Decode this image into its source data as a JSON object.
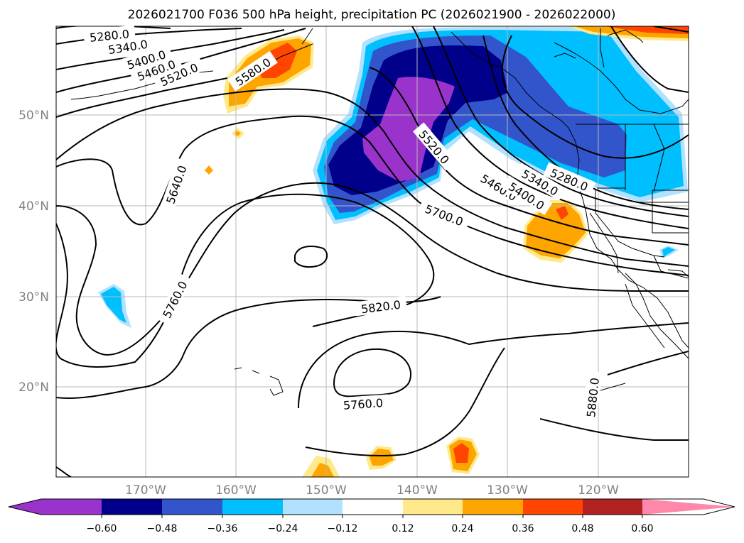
{
  "title": "2026021700 F036 500 hPa height, precipitation PC (2026021900 - 2026022000)",
  "latitude_labels": [
    "50°N",
    "40°N",
    "30°N",
    "20°N"
  ],
  "longitude_labels": [
    "170°W",
    "160°W",
    "150°W",
    "140°W",
    "130°W",
    "120°W"
  ],
  "contour_labels": [
    "5280.0",
    "5340.0",
    "5400.0",
    "5460.0",
    "5520.0",
    "5580.0",
    "5640.0",
    "5760.0",
    "5520.0",
    "5280.0",
    "5340.0",
    "5460.0",
    "5400.0",
    "5700.0",
    "5820.0",
    "5760.0",
    "5880.0"
  ],
  "colorbar": {
    "ticks": [
      "−0.60",
      "−0.48",
      "−0.36",
      "−0.24",
      "−0.12",
      "0.12",
      "0.24",
      "0.36",
      "0.48",
      "0.60"
    ],
    "colors": [
      "#9933cc",
      "#00008b",
      "#3355cc",
      "#00bfff",
      "#b0e2ff",
      "#ffffff",
      "#ffe98a",
      "#ffa500",
      "#ff4500",
      "#b22222",
      "#ff88aa"
    ]
  },
  "shade_colors": {
    "neg_light": "#b0e2ff",
    "neg_cyan": "#00bfff",
    "neg_blue": "#3355cc",
    "neg_navy": "#00008b",
    "neg_purple": "#9933cc",
    "pos_yellow": "#ffe98a",
    "pos_orange": "#ffa500",
    "pos_red": "#ff4500"
  }
}
